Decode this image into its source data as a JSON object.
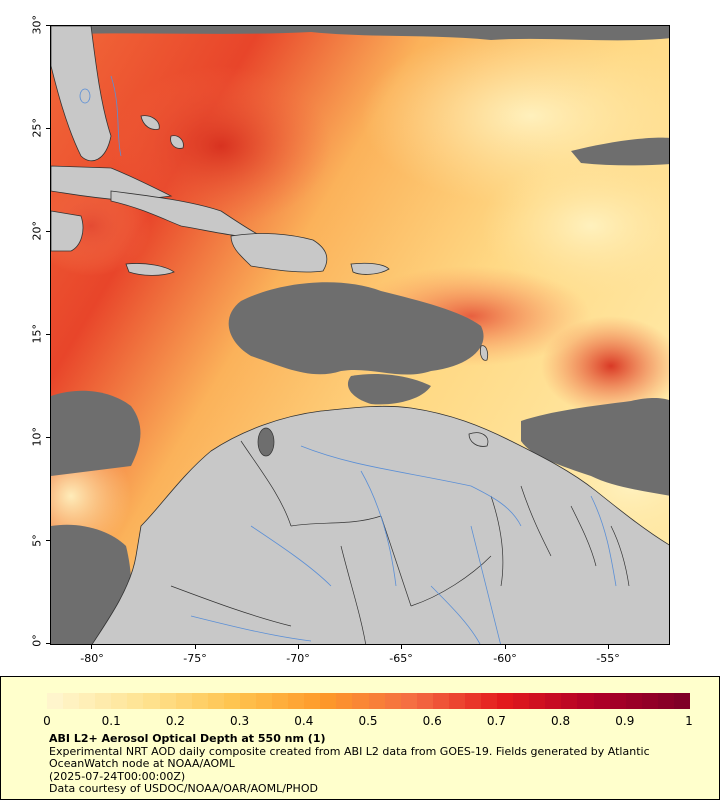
{
  "map": {
    "lat_labels": [
      "30°",
      "25°",
      "20°",
      "15°",
      "10°",
      "5°",
      "0°"
    ],
    "lon_labels": [
      "-80°",
      "-75°",
      "-70°",
      "-65°",
      "-60°",
      "-55°"
    ],
    "lat_range": [
      0,
      30
    ],
    "lon_range": [
      -82,
      -52
    ],
    "colors": {
      "land": "#c8c8c8",
      "no_data": "#6e6e6e",
      "border": "#333333",
      "river": "#5b8fd6"
    }
  },
  "legend": {
    "ticks": [
      "0",
      "0.1",
      "0.2",
      "0.3",
      "0.4",
      "0.5",
      "0.6",
      "0.7",
      "0.8",
      "0.9",
      "1"
    ],
    "scale": [
      0,
      1
    ],
    "colormap": [
      "#fff5cc",
      "#fee391",
      "#fec44f",
      "#fe9929",
      "#f46d43",
      "#e31a1c",
      "#b10026",
      "#800026"
    ],
    "title": "ABI L2+ Aerosol Optical Depth at 550 nm (1)",
    "line1": "Experimental NRT AOD daily composite created from ABI L2 data from GOES-19. Fields generated by Atlantic OceanWatch node at NOAA/AOML",
    "line2": "(2025-07-24T00:00:00Z)",
    "line3": "Data courtesy of USDOC/NOAA/OAR/AOML/PHOD"
  }
}
